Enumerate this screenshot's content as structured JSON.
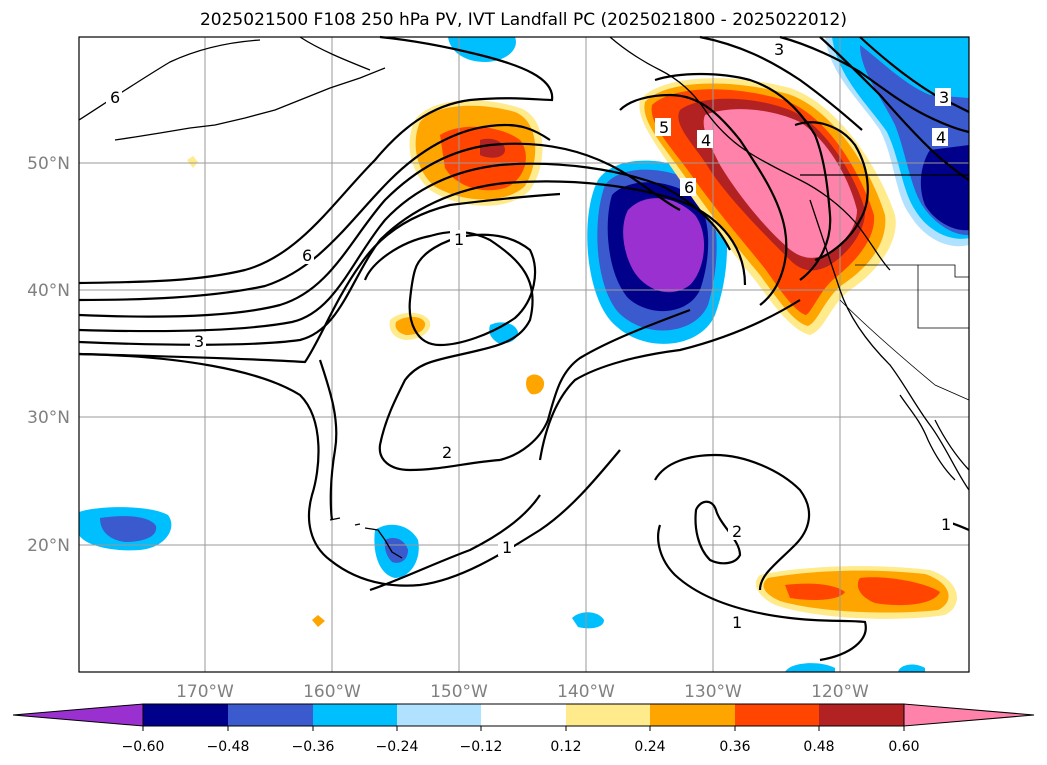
{
  "title": "2025021500 F108 250 hPa PV, IVT Landfall PC (2025021800 - 2025022012)",
  "map": {
    "lon_labels": [
      "170°W",
      "160°W",
      "150°W",
      "140°W",
      "130°W",
      "120°W"
    ],
    "lat_labels": [
      "50°N",
      "40°N",
      "30°N",
      "20°N"
    ],
    "contour_labels": [
      "6",
      "3",
      "5",
      "4",
      "6",
      "1",
      "2",
      "1",
      "3",
      "2",
      "1",
      "1",
      "6",
      "3",
      "4"
    ],
    "contour_color": "#000000",
    "land_outline_color": "#000000"
  },
  "colorbar": {
    "ticks": [
      "−0.60",
      "−0.48",
      "−0.36",
      "−0.24",
      "−0.12",
      "0.12",
      "0.24",
      "0.36",
      "0.48",
      "0.60"
    ],
    "colors": [
      "#9b30d0",
      "#00008b",
      "#3a5acd",
      "#00bfff",
      "#b0e2ff",
      "#ffffff",
      "#ffea8c",
      "#ffa500",
      "#ff4500",
      "#b22222",
      "#ff82ab"
    ],
    "extend": "both"
  }
}
